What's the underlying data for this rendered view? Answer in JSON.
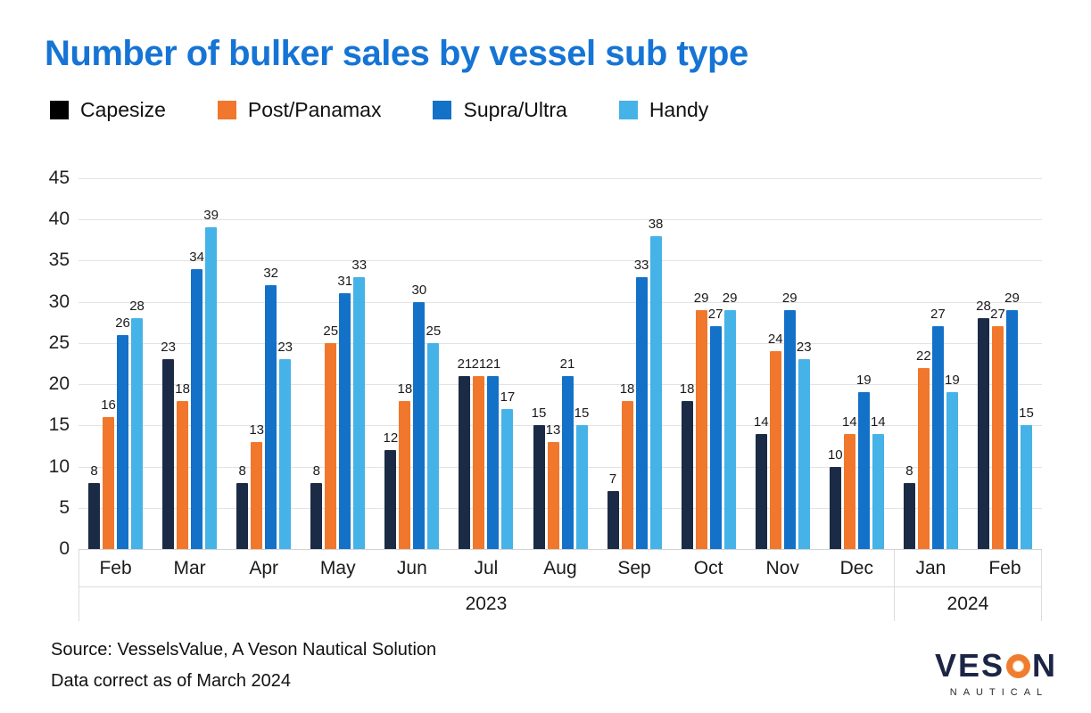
{
  "chart_data": {
    "type": "bar",
    "title": "Number of bulker sales by vessel sub type",
    "title_color": "#1574d4",
    "categories": [
      "Feb",
      "Mar",
      "Apr",
      "May",
      "Jun",
      "Jul",
      "Aug",
      "Sep",
      "Oct",
      "Nov",
      "Dec",
      "Jan",
      "Feb"
    ],
    "year_groups": [
      {
        "label": "2023",
        "start": 0,
        "end": 10
      },
      {
        "label": "2024",
        "start": 11,
        "end": 12
      }
    ],
    "series": [
      {
        "name": "Capesize",
        "color": "#1b2b45",
        "legend_color": "#000000",
        "values": [
          8,
          23,
          8,
          8,
          12,
          21,
          15,
          7,
          18,
          14,
          10,
          8,
          28
        ]
      },
      {
        "name": "Post/Panamax",
        "color": "#f0772c",
        "legend_color": "#f0772c",
        "values": [
          16,
          18,
          13,
          25,
          18,
          21,
          13,
          18,
          29,
          24,
          14,
          22,
          27
        ]
      },
      {
        "name": "Supra/Ultra",
        "color": "#1371c8",
        "legend_color": "#1371c8",
        "values": [
          26,
          34,
          32,
          31,
          30,
          21,
          21,
          33,
          27,
          29,
          19,
          27,
          29
        ]
      },
      {
        "name": "Handy",
        "color": "#45b2e8",
        "legend_color": "#45b2e8",
        "values": [
          28,
          39,
          23,
          33,
          25,
          17,
          15,
          38,
          29,
          23,
          14,
          19,
          15
        ]
      }
    ],
    "ylim": [
      0,
      45
    ],
    "ytick_step": 5,
    "grid": true,
    "legend_position": "top",
    "data_labels": true
  },
  "footer": {
    "source_line1": "Source: VesselsValue, A Veson Nautical Solution",
    "source_line2": "Data correct as of March 2024"
  },
  "logo": {
    "part1": "VES",
    "ring_icon": "orange-ring-o",
    "part2": "N",
    "subtext": "NAUTICAL"
  }
}
